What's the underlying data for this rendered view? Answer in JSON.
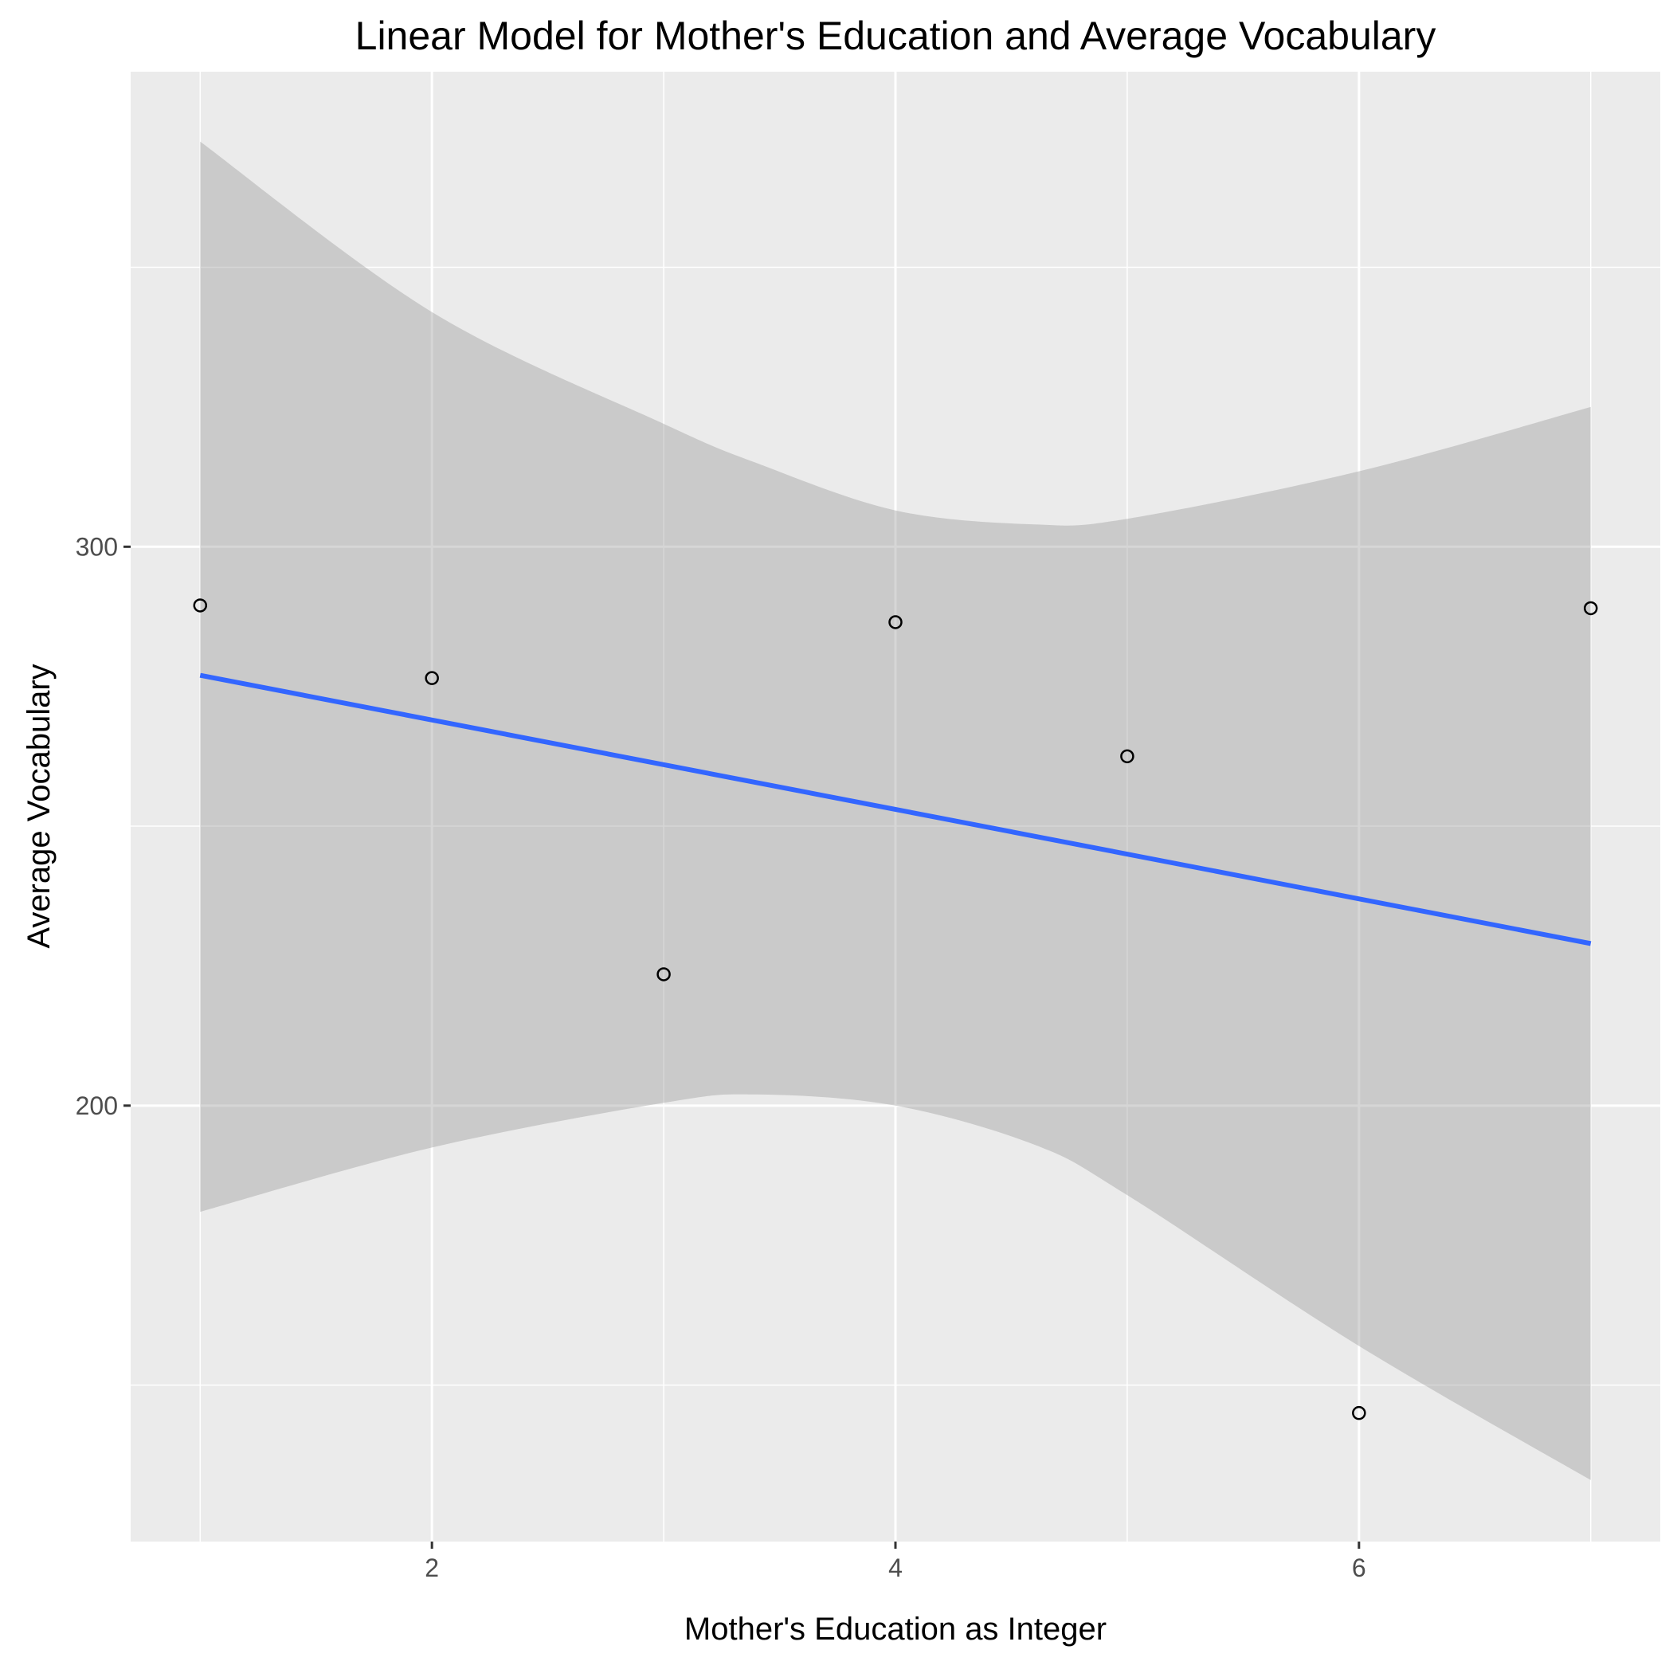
{
  "chart_data": {
    "type": "scatter",
    "title": "Linear Model for Mother's Education and Average Vocabulary",
    "xlabel": "Mother's Education as Integer",
    "ylabel": "Average Vocabulary",
    "xlim": [
      0.7,
      7.3
    ],
    "ylim": [
      122,
      385
    ],
    "x_ticks": [
      2,
      4,
      6
    ],
    "y_ticks": [
      200,
      300
    ],
    "x_minor_grid": [
      1,
      3,
      5,
      7
    ],
    "y_minor_grid": [
      150,
      250,
      350
    ],
    "grid": true,
    "points": {
      "x": [
        1,
        2,
        3,
        4,
        5,
        6,
        7
      ],
      "y": [
        289.5,
        276.5,
        223.5,
        286.5,
        262.5,
        145.0,
        289.0
      ]
    },
    "fit_line": {
      "method": "lm",
      "x": [
        1,
        7
      ],
      "y": [
        277.0,
        229.0
      ]
    },
    "confidence_band": {
      "x": [
        1.0,
        2.0,
        3.0,
        3.4,
        4.0,
        4.6,
        5.0,
        6.0,
        7.0
      ],
      "lower": [
        181.0,
        192.5,
        200.5,
        202.0,
        200.0,
        193.0,
        184.0,
        157.0,
        133.0
      ],
      "upper": [
        372.5,
        342.0,
        322.0,
        315.0,
        306.5,
        304.0,
        305.0,
        313.5,
        325.0
      ]
    },
    "colors": {
      "panel_bg": "#ebebeb",
      "grid": "#ffffff",
      "band": "#999999",
      "line": "#3366ff",
      "point_stroke": "#000000"
    }
  }
}
